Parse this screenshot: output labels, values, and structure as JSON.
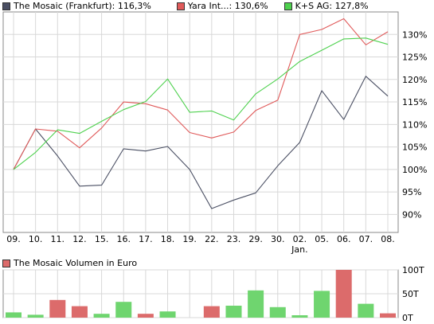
{
  "legend": [
    {
      "label": "The Mosaic (Frankfurt): 116,3%",
      "color": "#4a4f63"
    },
    {
      "label": "Yara Int...: 130,6%",
      "color": "#e05a5a"
    },
    {
      "label": "K+S AG: 127,8%",
      "color": "#4ed14e"
    }
  ],
  "volume_legend": {
    "label": "The Mosaic Volumen in Euro",
    "color": "#d9534f"
  },
  "colors": {
    "grid": "#d8d8d8",
    "vol_up": "#6fd56f",
    "vol_down": "#dc6b6b",
    "axis": "#888888"
  },
  "chart_data": [
    {
      "type": "line",
      "x": [
        "09.",
        "10.",
        "11.",
        "12.",
        "15.",
        "16.",
        "17.",
        "18.",
        "19.",
        "22.",
        "23.",
        "29.",
        "30.",
        "02.",
        "05.",
        "06.",
        "07.",
        "08."
      ],
      "x_sublabels": {
        "13": "Jan."
      },
      "yticks": [
        "90%",
        "95%",
        "100%",
        "105%",
        "110%",
        "115%",
        "120%",
        "125%",
        "130%"
      ],
      "ylim": [
        86,
        135
      ],
      "grid": true,
      "legend_position": "top",
      "series": [
        {
          "name": "The Mosaic (Frankfurt): 116,3%",
          "color": "#4a4f63",
          "values": [
            100,
            109,
            103,
            96.3,
            96.5,
            104.6,
            104.1,
            105.1,
            100,
            91.3,
            93.2,
            94.8,
            100.8,
            106,
            117.5,
            111.1,
            120.7,
            116.3
          ]
        },
        {
          "name": "Yara Int...: 130,6%",
          "color": "#e05a5a",
          "values": [
            100,
            109,
            108.5,
            104.8,
            109.2,
            115,
            114.6,
            113.2,
            108.2,
            107,
            108.3,
            113.1,
            115.4,
            130,
            131.1,
            133.5,
            127.7,
            130.6
          ]
        },
        {
          "name": "K+S AG: 127,8%",
          "color": "#4ed14e",
          "values": [
            100,
            103.8,
            108.8,
            108,
            110.7,
            113.3,
            115.1,
            120.1,
            112.7,
            113,
            111,
            116.8,
            120.1,
            124,
            126.5,
            129,
            129.2,
            127.8
          ]
        }
      ]
    },
    {
      "type": "bar",
      "title": "The Mosaic Volumen in Euro",
      "yticks": [
        "100T",
        "50T",
        "0T"
      ],
      "ylim": [
        0,
        100
      ],
      "values": [
        11,
        6,
        37,
        24,
        8,
        33,
        8,
        13,
        0,
        24,
        25,
        57,
        22,
        5,
        56,
        100,
        29,
        9
      ],
      "direction": [
        "up",
        "up",
        "down",
        "down",
        "up",
        "up",
        "down",
        "up",
        "none",
        "down",
        "up",
        "up",
        "up",
        "up",
        "up",
        "down",
        "up",
        "down"
      ]
    }
  ]
}
